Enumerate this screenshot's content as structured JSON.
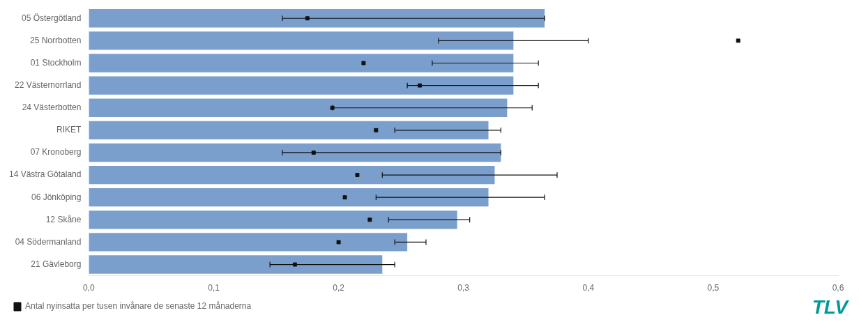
{
  "chart_data": {
    "type": "bar",
    "orientation": "horizontal",
    "categories": [
      "05 Östergötland",
      "25 Norrbotten",
      "01 Stockholm",
      "22 Västernorrland",
      "24 Västerbotten",
      "RIKET",
      "07 Kronoberg",
      "14 Västra Götaland",
      "06 Jönköping",
      "12 Skåne",
      "04 Södermanland",
      "21 Gävleborg"
    ],
    "series": [
      {
        "type": "bar",
        "color": "#7b9fcc",
        "values": [
          0.365,
          0.34,
          0.34,
          0.34,
          0.335,
          0.32,
          0.33,
          0.325,
          0.32,
          0.295,
          0.255,
          0.235
        ],
        "error_bars": {
          "color": "#111111",
          "low": [
            0.155,
            0.28,
            0.275,
            0.255,
            0.195,
            0.245,
            0.155,
            0.235,
            0.23,
            0.24,
            0.245,
            0.145
          ],
          "high": [
            0.365,
            0.4,
            0.36,
            0.36,
            0.355,
            0.33,
            0.33,
            0.375,
            0.365,
            0.305,
            0.27,
            0.245
          ]
        }
      },
      {
        "type": "scatter",
        "name": "Antal nyinsatta per tusen invånare de senaste 12 månaderna",
        "marker": "square",
        "color": "#111111",
        "values": [
          0.175,
          0.52,
          0.22,
          0.265,
          0.195,
          0.23,
          0.18,
          0.215,
          0.205,
          0.225,
          0.2,
          0.165
        ]
      }
    ],
    "xlim": [
      0.0,
      0.6
    ],
    "xticks": [
      {
        "value": 0.0,
        "label": "0,0"
      },
      {
        "value": 0.1,
        "label": "0,1"
      },
      {
        "value": 0.2,
        "label": "0,2"
      },
      {
        "value": 0.3,
        "label": "0,3"
      },
      {
        "value": 0.4,
        "label": "0,4"
      },
      {
        "value": 0.5,
        "label": "0,5"
      },
      {
        "value": 0.6,
        "label": "0,6"
      }
    ],
    "grid": false,
    "legend": "bottom",
    "annotations": [
      {
        "text": "TLV",
        "color": "#009999"
      }
    ]
  }
}
